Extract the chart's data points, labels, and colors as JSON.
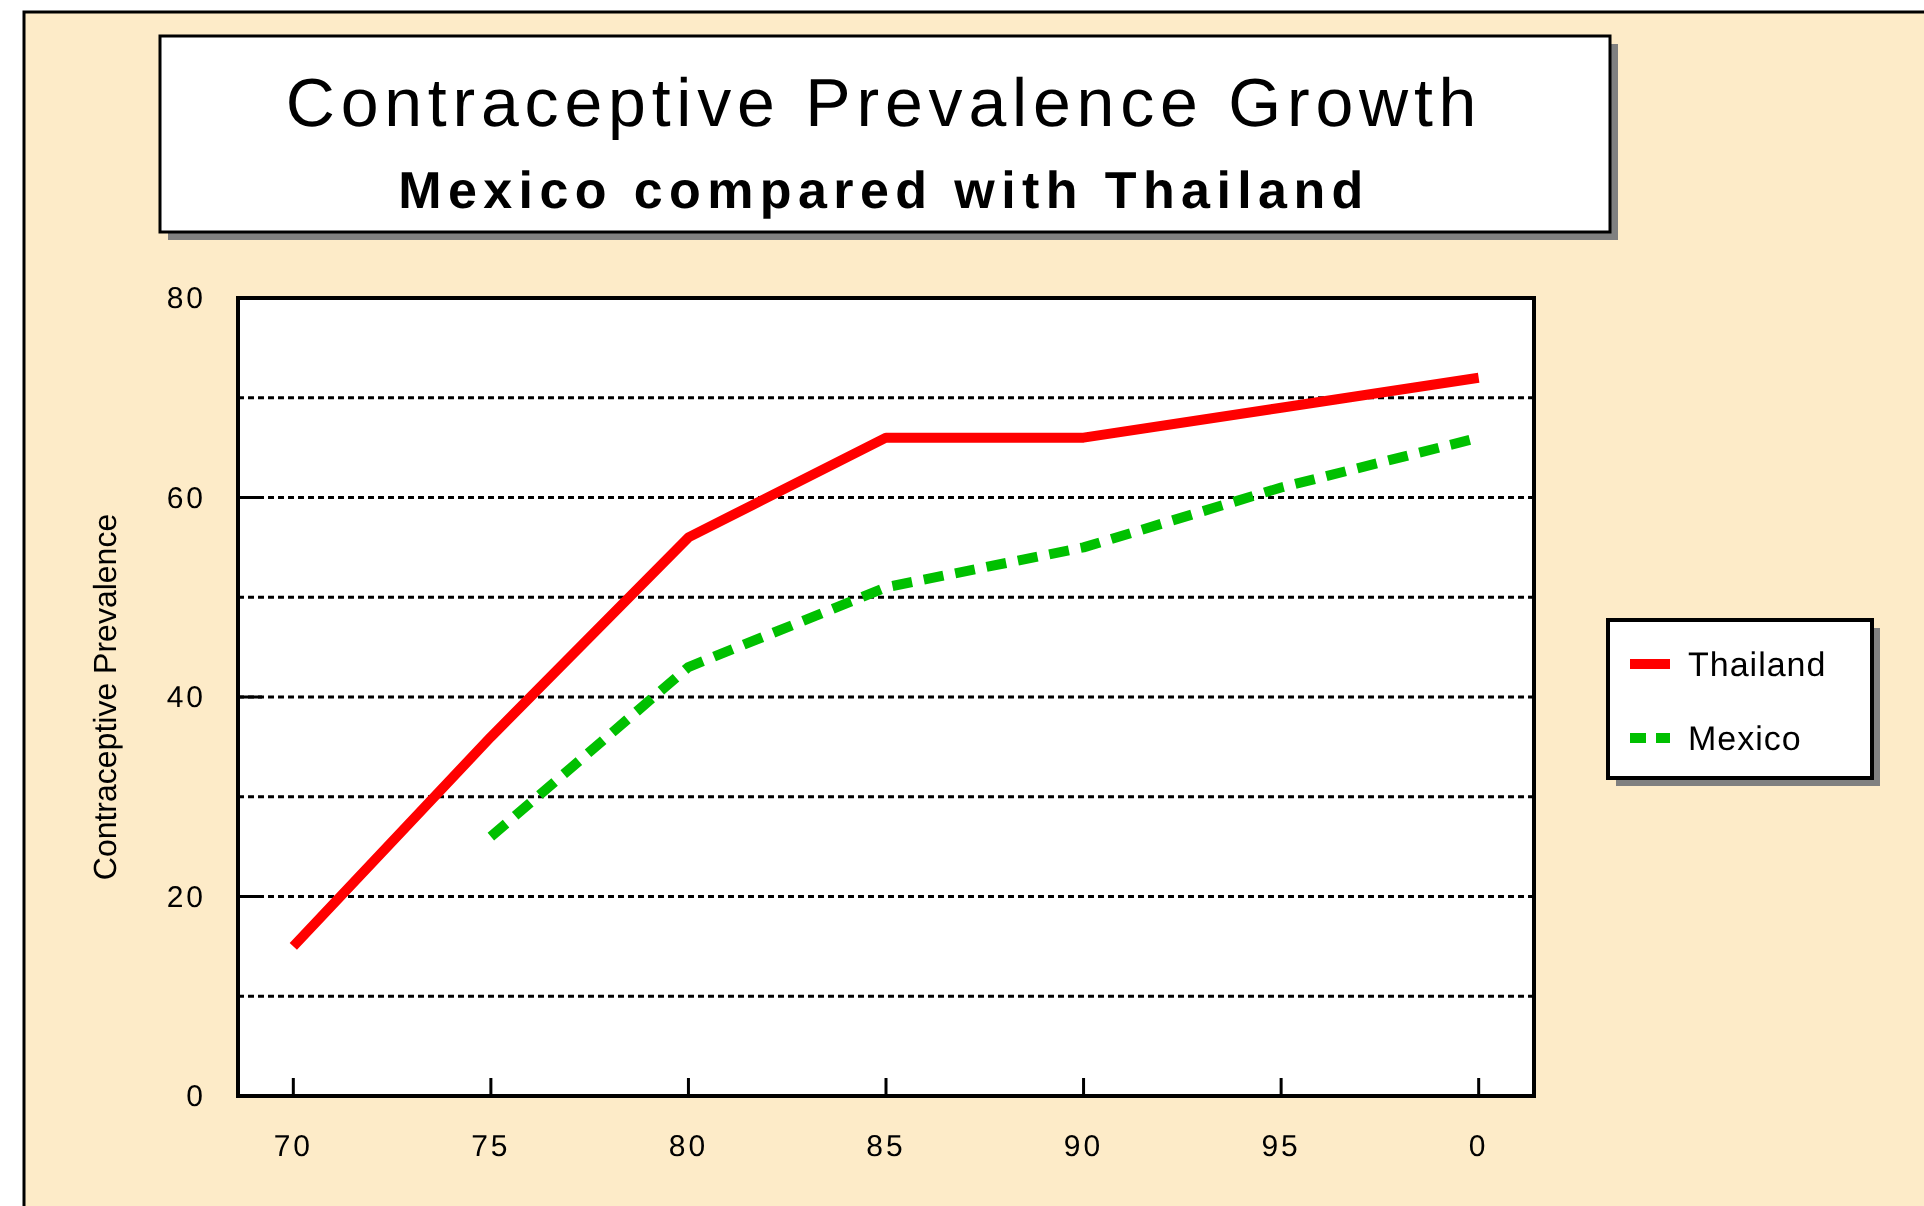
{
  "chart_data": {
    "type": "line",
    "title": "Contraceptive Prevalence Growth",
    "subtitle": "Mexico compared with Thailand",
    "ylabel": "Contraceptive Prevalence",
    "categories": [
      "70",
      "75",
      "80",
      "85",
      "90",
      "95",
      "0"
    ],
    "ylim": [
      0,
      80
    ],
    "yticks": [
      0,
      {
        "value": 10,
        "label": null
      },
      20,
      {
        "value": 30,
        "label": null
      },
      40,
      {
        "value": 50,
        "label": null
      },
      60,
      {
        "value": 70,
        "label": null
      },
      80
    ],
    "grid": "y",
    "legend": "right",
    "series": [
      {
        "name": "Thailand",
        "color": "#ff0000",
        "line_style": "solid",
        "values": [
          15,
          36,
          56,
          66,
          66,
          69,
          72
        ]
      },
      {
        "name": "Mexico",
        "color": "#00c000",
        "line_style": "dashed",
        "values": [
          null,
          26,
          43,
          51,
          55,
          61,
          66
        ]
      }
    ]
  }
}
